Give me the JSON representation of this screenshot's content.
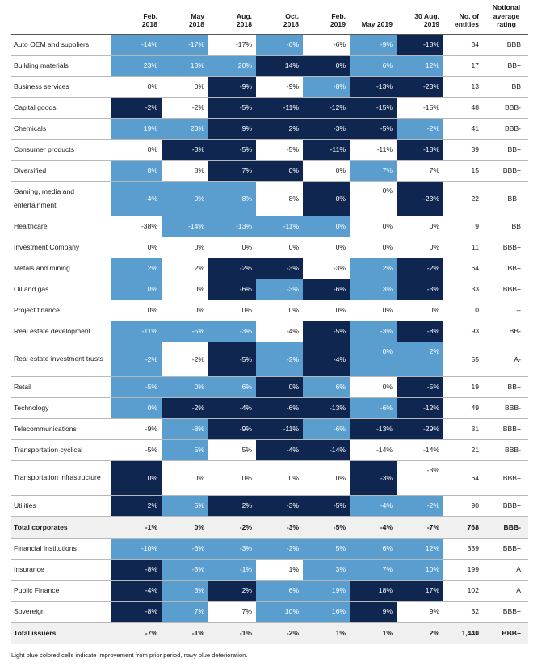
{
  "headers": [
    "",
    "Feb.\n2018",
    "May\n2018",
    "Aug.\n2018",
    "Oct.\n2018",
    "Feb.\n2019",
    "May 2019",
    "30 Aug.\n2019",
    "No. of\nentities",
    "Notional\naverage\nrating"
  ],
  "rows": [
    {
      "label": "Auto OEM and suppliers",
      "values": [
        "-14%",
        "-17%",
        "-17%",
        "-6%",
        "-6%",
        "-9%",
        "-18%"
      ],
      "colors": [
        "L",
        "L",
        "",
        "L",
        "",
        "L",
        "D"
      ],
      "count": "34",
      "rating": "BBB"
    },
    {
      "label": "Building materials",
      "values": [
        "23%",
        "13%",
        "20%",
        "14%",
        "0%",
        "6%",
        "12%"
      ],
      "colors": [
        "L",
        "L",
        "L",
        "D",
        "D",
        "L",
        "L"
      ],
      "count": "17",
      "rating": "BB+"
    },
    {
      "label": "Business services",
      "values": [
        "0%",
        "0%",
        "-9%",
        "-9%",
        "-8%",
        "-13%",
        "-23%"
      ],
      "colors": [
        "",
        "",
        "D",
        "",
        "L",
        "D",
        "D"
      ],
      "count": "13",
      "rating": "BB"
    },
    {
      "label": "Capital goods",
      "values": [
        "-2%",
        "-2%",
        "-5%",
        "-11%",
        "-12%",
        "-15%",
        "-15%"
      ],
      "colors": [
        "D",
        "",
        "D",
        "D",
        "D",
        "D",
        ""
      ],
      "count": "48",
      "rating": "BBB-"
    },
    {
      "label": "Chemicals",
      "values": [
        "19%",
        "23%",
        "9%",
        "2%",
        "-3%",
        "-5%",
        "-2%"
      ],
      "colors": [
        "L",
        "L",
        "D",
        "D",
        "D",
        "D",
        "L"
      ],
      "count": "41",
      "rating": "BBB-"
    },
    {
      "label": "Consumer products",
      "values": [
        "0%",
        "-3%",
        "-5%",
        "-5%",
        "-11%",
        "-11%",
        "-18%"
      ],
      "colors": [
        "",
        "D",
        "D",
        "",
        "D",
        "",
        "D"
      ],
      "count": "39",
      "rating": "BB+"
    },
    {
      "label": "Diversified",
      "values": [
        "8%",
        "8%",
        "7%",
        "0%",
        "0%",
        "7%",
        "7%"
      ],
      "colors": [
        "L",
        "",
        "D",
        "D",
        "",
        "L",
        ""
      ],
      "count": "15",
      "rating": "BBB+"
    },
    {
      "label": "Gaming, media and entertainment",
      "values": [
        "-4%",
        "0%",
        "8%",
        "8%",
        "0%",
        "0%",
        "-23%"
      ],
      "colors": [
        "L",
        "L",
        "L",
        "",
        "D",
        "",
        "D"
      ],
      "count": "22",
      "rating": "BB+",
      "tall": true
    },
    {
      "label": "Healthcare",
      "values": [
        "-38%",
        "-14%",
        "-13%",
        "-11%",
        "0%",
        "0%",
        "0%"
      ],
      "colors": [
        "",
        "L",
        "L",
        "L",
        "L",
        "",
        ""
      ],
      "count": "9",
      "rating": "BB"
    },
    {
      "label": "Investment Company",
      "values": [
        "0%",
        "0%",
        "0%",
        "0%",
        "0%",
        "0%",
        "0%"
      ],
      "colors": [
        "",
        "",
        "",
        "",
        "",
        "",
        ""
      ],
      "count": "11",
      "rating": "BBB+"
    },
    {
      "label": "Metals and mining",
      "values": [
        "2%",
        "2%",
        "-2%",
        "-3%",
        "-3%",
        "2%",
        "-2%"
      ],
      "colors": [
        "L",
        "",
        "D",
        "D",
        "",
        "L",
        "D"
      ],
      "count": "64",
      "rating": "BB+"
    },
    {
      "label": "Oil and gas",
      "values": [
        "0%",
        "0%",
        "-6%",
        "-3%",
        "-6%",
        "3%",
        "-3%"
      ],
      "colors": [
        "L",
        "",
        "D",
        "L",
        "D",
        "L",
        "D"
      ],
      "count": "33",
      "rating": "BBB+"
    },
    {
      "label": "Project finance",
      "values": [
        "0%",
        "0%",
        "0%",
        "0%",
        "0%",
        "0%",
        "0%"
      ],
      "colors": [
        "",
        "",
        "",
        "",
        "",
        "",
        ""
      ],
      "count": "0",
      "rating": "--"
    },
    {
      "label": "Real estate development",
      "values": [
        "-11%",
        "-5%",
        "-3%",
        "-4%",
        "-5%",
        "-3%",
        "-8%"
      ],
      "colors": [
        "L",
        "L",
        "L",
        "",
        "D",
        "L",
        "D"
      ],
      "count": "93",
      "rating": "BB-"
    },
    {
      "label": "Real estate investment trusts",
      "values": [
        "-2%",
        "-2%",
        "-5%",
        "-2%",
        "-4%",
        "0%",
        "2%"
      ],
      "colors": [
        "L",
        "",
        "D",
        "L",
        "D",
        "L",
        "L"
      ],
      "count": "55",
      "rating": "A-",
      "tall": true
    },
    {
      "label": "Retail",
      "values": [
        "-5%",
        "0%",
        "6%",
        "0%",
        "6%",
        "0%",
        "-5%"
      ],
      "colors": [
        "L",
        "L",
        "L",
        "D",
        "L",
        "",
        "D"
      ],
      "count": "19",
      "rating": "BB+"
    },
    {
      "label": "Technology",
      "values": [
        "0%",
        "-2%",
        "-4%",
        "-6%",
        "-13%",
        "-6%",
        "-12%"
      ],
      "colors": [
        "L",
        "D",
        "D",
        "D",
        "D",
        "L",
        "D"
      ],
      "count": "49",
      "rating": "BBB-"
    },
    {
      "label": "Telecommunications",
      "values": [
        "-9%",
        "-8%",
        "-9%",
        "-11%",
        "-6%",
        "-13%",
        "-29%"
      ],
      "colors": [
        "",
        "L",
        "D",
        "D",
        "L",
        "D",
        "D"
      ],
      "count": "31",
      "rating": "BBB+"
    },
    {
      "label": "Transportation cyclical",
      "values": [
        "-5%",
        "5%",
        "5%",
        "-4%",
        "-14%",
        "-14%",
        "-14%"
      ],
      "colors": [
        "",
        "L",
        "",
        "D",
        "D",
        "",
        ""
      ],
      "count": "21",
      "rating": "BBB-"
    },
    {
      "label": "Transportation infrastructure",
      "values": [
        "0%",
        "0%",
        "0%",
        "0%",
        "0%",
        "-3%",
        "-3%"
      ],
      "colors": [
        "D",
        "",
        "",
        "",
        "",
        "D",
        ""
      ],
      "count": "64",
      "rating": "BBB+",
      "tall": true
    },
    {
      "label": "Utilities",
      "values": [
        "2%",
        "5%",
        "2%",
        "-3%",
        "-5%",
        "-4%",
        "-2%"
      ],
      "colors": [
        "D",
        "L",
        "D",
        "D",
        "D",
        "L",
        "L"
      ],
      "count": "90",
      "rating": "BBB+"
    },
    {
      "label": "Total corporates",
      "values": [
        "-1%",
        "0%",
        "-2%",
        "-3%",
        "-5%",
        "-4%",
        "-7%"
      ],
      "colors": [
        "",
        "",
        "",
        "",
        "",
        "",
        ""
      ],
      "count": "768",
      "rating": "BBB-",
      "total": true
    },
    {
      "label": "Financial Institutions",
      "values": [
        "-10%",
        "-6%",
        "-3%",
        "-2%",
        "5%",
        "6%",
        "12%"
      ],
      "colors": [
        "L",
        "L",
        "L",
        "L",
        "L",
        "L",
        "L"
      ],
      "count": "339",
      "rating": "BBB+"
    },
    {
      "label": "Insurance",
      "values": [
        "-8%",
        "-3%",
        "-1%",
        "1%",
        "3%",
        "7%",
        "10%"
      ],
      "colors": [
        "D",
        "L",
        "L",
        "",
        "L",
        "L",
        "L"
      ],
      "count": "199",
      "rating": "A"
    },
    {
      "label": "Public Finance",
      "values": [
        "-4%",
        "3%",
        "2%",
        "6%",
        "19%",
        "18%",
        "17%"
      ],
      "colors": [
        "D",
        "L",
        "D",
        "L",
        "L",
        "D",
        "D"
      ],
      "count": "102",
      "rating": "A"
    },
    {
      "label": "Sovereign",
      "values": [
        "-8%",
        "7%",
        "7%",
        "10%",
        "16%",
        "9%",
        "9%"
      ],
      "colors": [
        "D",
        "L",
        "",
        "L",
        "L",
        "D",
        ""
      ],
      "count": "32",
      "rating": "BBB+"
    },
    {
      "label": "Total issuers",
      "values": [
        "-7%",
        "-1%",
        "-1%",
        "-2%",
        "1%",
        "1%",
        "2%"
      ],
      "colors": [
        "",
        "",
        "",
        "",
        "",
        "",
        ""
      ],
      "count": "1,440",
      "rating": "BBB+",
      "total": true
    }
  ],
  "footnote": "Light blue colored cells indicate improvement from prior period, navy blue deterioration.",
  "colors": {
    "improvement": "#5a9ecf",
    "deterioration": "#0f2650"
  }
}
